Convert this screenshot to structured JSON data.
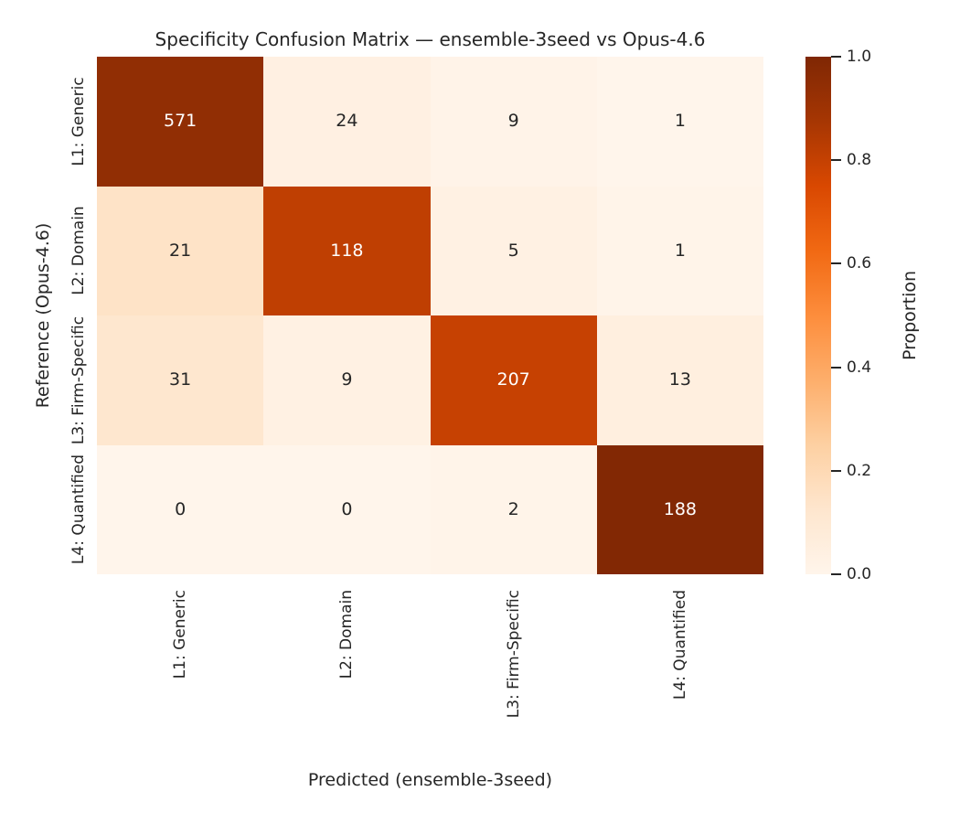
{
  "figure": {
    "background_color": "#ffffff",
    "text_color": "#262626"
  },
  "chart_data": {
    "type": "heatmap",
    "title": "Specificity Confusion Matrix — ensemble-3seed vs Opus-4.6",
    "xlabel": "Predicted (ensemble-3seed)",
    "ylabel": "Reference (Opus-4.6)",
    "x_ticklabels": [
      "L1: Generic",
      "L2: Domain",
      "L3: Firm-Specific",
      "L4: Quantified"
    ],
    "y_ticklabels": [
      "L1: Generic",
      "L2: Domain",
      "L3: Firm-Specific",
      "L4: Quantified"
    ],
    "matrix": [
      [
        571,
        24,
        9,
        1
      ],
      [
        21,
        118,
        5,
        1
      ],
      [
        31,
        9,
        207,
        13
      ],
      [
        0,
        0,
        2,
        188
      ]
    ],
    "normalization": "row",
    "grid": false,
    "colormap": {
      "name": "Oranges",
      "stops": [
        "#fff5eb",
        "#fee6ce",
        "#fdd0a2",
        "#fdae6b",
        "#fd8d3c",
        "#f16913",
        "#d94801",
        "#a63603",
        "#7f2704"
      ]
    },
    "annot_colors": {
      "light_text": "#ffffff",
      "dark_text": "#262626"
    },
    "colorbar": {
      "label": "Proportion",
      "range": [
        0.0,
        1.0
      ],
      "tick_values": [
        0.0,
        0.2,
        0.4,
        0.6,
        0.8,
        1.0
      ],
      "tick_labels": [
        "0.0",
        "0.2",
        "0.4",
        "0.6",
        "0.8",
        "1.0"
      ],
      "position": "right"
    }
  }
}
